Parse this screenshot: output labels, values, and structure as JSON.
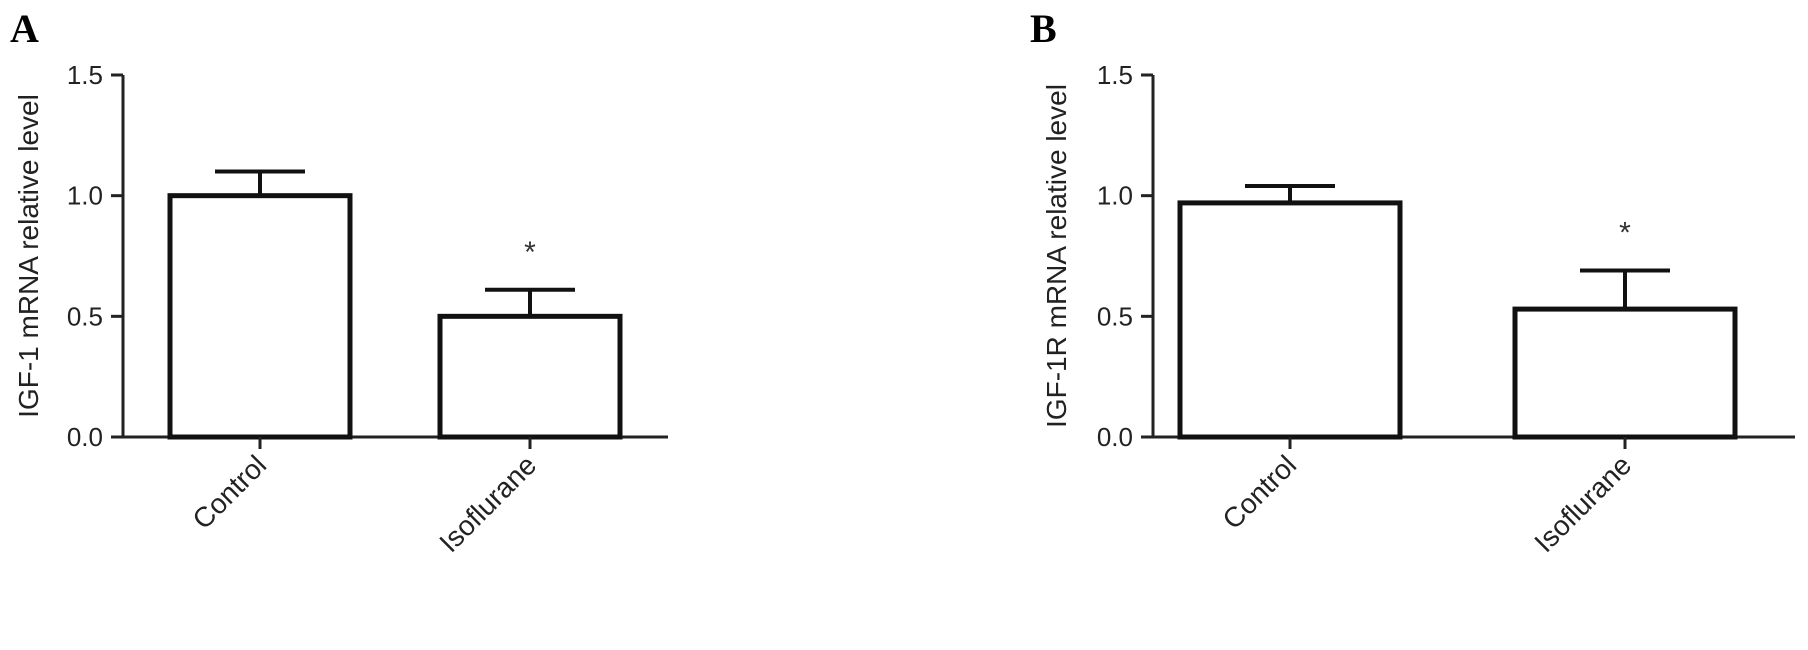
{
  "chart_data": [
    {
      "panel_label": "A",
      "type": "bar",
      "ylabel": "IGF-1 mRNA relative level",
      "xlabel": "",
      "ylim": [
        0,
        1.5
      ],
      "yticks": [
        "0.0",
        "0.5",
        "1.0",
        "1.5"
      ],
      "categories": [
        "Control",
        "Isoflurane"
      ],
      "values": [
        1.0,
        0.5
      ],
      "errors": [
        0.1,
        0.11
      ],
      "annotations": [
        "",
        "*"
      ]
    },
    {
      "panel_label": "B",
      "type": "bar",
      "ylabel": "IGF-1R mRNA relative level",
      "xlabel": "",
      "ylim": [
        0,
        1.5
      ],
      "yticks": [
        "0.0",
        "0.5",
        "1.0",
        "1.5"
      ],
      "categories": [
        "Control",
        "Isoflurane"
      ],
      "values": [
        0.97,
        0.53
      ],
      "errors": [
        0.07,
        0.16
      ],
      "annotations": [
        "",
        "*"
      ]
    }
  ]
}
